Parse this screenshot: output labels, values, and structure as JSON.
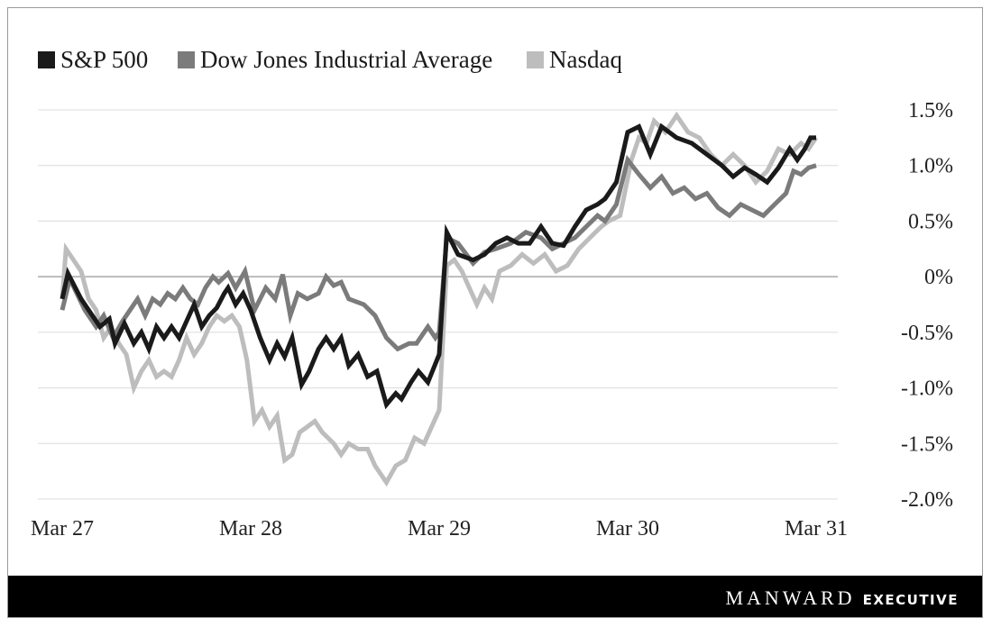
{
  "chart_data": {
    "type": "line",
    "title": "",
    "xlabel": "",
    "ylabel": "",
    "x_tick_labels": [
      "Mar 27",
      "Mar 28",
      "Mar 29",
      "Mar 30",
      "Mar 31"
    ],
    "y_ticks": [
      {
        "value": 1.5,
        "label": "1.5%"
      },
      {
        "value": 1.0,
        "label": "1.0%"
      },
      {
        "value": 0.5,
        "label": "0.5%"
      },
      {
        "value": 0.0,
        "label": "0%"
      },
      {
        "value": -0.5,
        "label": "-0.5%"
      },
      {
        "value": -1.0,
        "label": "-1.0%"
      },
      {
        "value": -1.5,
        "label": "-1.5%"
      },
      {
        "value": -2.0,
        "label": "-2.0%"
      }
    ],
    "ylim": [
      -2.0,
      1.5
    ],
    "xlim": [
      0,
      4
    ],
    "legend_position": "top-left",
    "series": [
      {
        "name": "S&P 500",
        "color": "#1a1a1a",
        "points": [
          [
            0,
            -0.2
          ],
          [
            0.03,
            0.03
          ],
          [
            0.1,
            -0.2
          ],
          [
            0.2,
            -0.45
          ],
          [
            0.25,
            -0.38
          ],
          [
            0.28,
            -0.6
          ],
          [
            0.33,
            -0.42
          ],
          [
            0.38,
            -0.6
          ],
          [
            0.42,
            -0.5
          ],
          [
            0.46,
            -0.65
          ],
          [
            0.5,
            -0.45
          ],
          [
            0.54,
            -0.55
          ],
          [
            0.58,
            -0.45
          ],
          [
            0.62,
            -0.55
          ],
          [
            0.66,
            -0.4
          ],
          [
            0.7,
            -0.25
          ],
          [
            0.74,
            -0.45
          ],
          [
            0.78,
            -0.35
          ],
          [
            0.82,
            -0.28
          ],
          [
            0.86,
            -0.15
          ],
          [
            0.88,
            -0.1
          ],
          [
            0.92,
            -0.25
          ],
          [
            0.96,
            -0.15
          ],
          [
            1.0,
            -0.3
          ],
          [
            1.05,
            -0.55
          ],
          [
            1.1,
            -0.75
          ],
          [
            1.14,
            -0.6
          ],
          [
            1.18,
            -0.72
          ],
          [
            1.22,
            -0.55
          ],
          [
            1.27,
            -0.97
          ],
          [
            1.31,
            -0.85
          ],
          [
            1.36,
            -0.65
          ],
          [
            1.4,
            -0.55
          ],
          [
            1.44,
            -0.65
          ],
          [
            1.48,
            -0.55
          ],
          [
            1.52,
            -0.8
          ],
          [
            1.57,
            -0.7
          ],
          [
            1.62,
            -0.9
          ],
          [
            1.67,
            -0.85
          ],
          [
            1.72,
            -1.15
          ],
          [
            1.77,
            -1.05
          ],
          [
            1.8,
            -1.1
          ],
          [
            1.85,
            -0.95
          ],
          [
            1.89,
            -0.85
          ],
          [
            1.94,
            -0.95
          ],
          [
            2.0,
            -0.7
          ],
          [
            2.04,
            0.4
          ],
          [
            2.1,
            0.2
          ],
          [
            2.18,
            0.15
          ],
          [
            2.24,
            0.2
          ],
          [
            2.3,
            0.3
          ],
          [
            2.36,
            0.35
          ],
          [
            2.42,
            0.3
          ],
          [
            2.48,
            0.3
          ],
          [
            2.54,
            0.45
          ],
          [
            2.6,
            0.3
          ],
          [
            2.66,
            0.28
          ],
          [
            2.72,
            0.45
          ],
          [
            2.78,
            0.6
          ],
          [
            2.84,
            0.65
          ],
          [
            2.88,
            0.7
          ],
          [
            2.94,
            0.85
          ],
          [
            3.0,
            1.3
          ],
          [
            3.06,
            1.35
          ],
          [
            3.12,
            1.1
          ],
          [
            3.18,
            1.35
          ],
          [
            3.26,
            1.25
          ],
          [
            3.34,
            1.2
          ],
          [
            3.42,
            1.1
          ],
          [
            3.5,
            1.0
          ],
          [
            3.56,
            0.9
          ],
          [
            3.62,
            0.98
          ],
          [
            3.68,
            0.92
          ],
          [
            3.74,
            0.85
          ],
          [
            3.8,
            0.98
          ],
          [
            3.86,
            1.15
          ],
          [
            3.9,
            1.05
          ],
          [
            3.94,
            1.15
          ],
          [
            3.97,
            1.25
          ],
          [
            4.0,
            1.25
          ]
        ]
      },
      {
        "name": "Dow Jones Industrial Average",
        "color": "#7b7b7c",
        "points": [
          [
            0,
            -0.3
          ],
          [
            0.04,
            -0.02
          ],
          [
            0.12,
            -0.3
          ],
          [
            0.18,
            -0.45
          ],
          [
            0.22,
            -0.35
          ],
          [
            0.27,
            -0.55
          ],
          [
            0.32,
            -0.4
          ],
          [
            0.36,
            -0.3
          ],
          [
            0.4,
            -0.2
          ],
          [
            0.44,
            -0.35
          ],
          [
            0.48,
            -0.2
          ],
          [
            0.52,
            -0.25
          ],
          [
            0.56,
            -0.15
          ],
          [
            0.6,
            -0.2
          ],
          [
            0.64,
            -0.1
          ],
          [
            0.68,
            -0.2
          ],
          [
            0.72,
            -0.25
          ],
          [
            0.76,
            -0.1
          ],
          [
            0.8,
            0.0
          ],
          [
            0.83,
            -0.05
          ],
          [
            0.88,
            0.03
          ],
          [
            0.92,
            -0.1
          ],
          [
            0.97,
            0.05
          ],
          [
            1.02,
            -0.3
          ],
          [
            1.08,
            -0.1
          ],
          [
            1.13,
            -0.2
          ],
          [
            1.17,
            0.02
          ],
          [
            1.21,
            -0.35
          ],
          [
            1.25,
            -0.15
          ],
          [
            1.3,
            -0.2
          ],
          [
            1.36,
            -0.15
          ],
          [
            1.4,
            0.0
          ],
          [
            1.44,
            -0.08
          ],
          [
            1.48,
            -0.05
          ],
          [
            1.52,
            -0.2
          ],
          [
            1.6,
            -0.25
          ],
          [
            1.66,
            -0.35
          ],
          [
            1.72,
            -0.55
          ],
          [
            1.78,
            -0.65
          ],
          [
            1.84,
            -0.6
          ],
          [
            1.88,
            -0.6
          ],
          [
            1.94,
            -0.45
          ],
          [
            1.98,
            -0.55
          ],
          [
            2.0,
            -0.5
          ],
          [
            2.04,
            0.35
          ],
          [
            2.1,
            0.3
          ],
          [
            2.18,
            0.12
          ],
          [
            2.24,
            0.22
          ],
          [
            2.3,
            0.25
          ],
          [
            2.38,
            0.3
          ],
          [
            2.46,
            0.4
          ],
          [
            2.54,
            0.35
          ],
          [
            2.6,
            0.25
          ],
          [
            2.66,
            0.3
          ],
          [
            2.72,
            0.35
          ],
          [
            2.78,
            0.45
          ],
          [
            2.84,
            0.55
          ],
          [
            2.88,
            0.5
          ],
          [
            2.94,
            0.65
          ],
          [
            3.0,
            1.05
          ],
          [
            3.06,
            0.92
          ],
          [
            3.12,
            0.8
          ],
          [
            3.18,
            0.9
          ],
          [
            3.24,
            0.75
          ],
          [
            3.3,
            0.8
          ],
          [
            3.36,
            0.7
          ],
          [
            3.42,
            0.75
          ],
          [
            3.48,
            0.62
          ],
          [
            3.54,
            0.55
          ],
          [
            3.6,
            0.65
          ],
          [
            3.66,
            0.6
          ],
          [
            3.72,
            0.55
          ],
          [
            3.78,
            0.65
          ],
          [
            3.84,
            0.75
          ],
          [
            3.88,
            0.95
          ],
          [
            3.92,
            0.92
          ],
          [
            3.96,
            0.98
          ],
          [
            4.0,
            1.0
          ]
        ]
      },
      {
        "name": "Nasdaq",
        "color": "#bdbdbd",
        "points": [
          [
            0,
            -0.2
          ],
          [
            0.02,
            0.25
          ],
          [
            0.06,
            0.15
          ],
          [
            0.1,
            0.05
          ],
          [
            0.14,
            -0.2
          ],
          [
            0.18,
            -0.3
          ],
          [
            0.22,
            -0.55
          ],
          [
            0.26,
            -0.45
          ],
          [
            0.3,
            -0.6
          ],
          [
            0.34,
            -0.7
          ],
          [
            0.38,
            -1.0
          ],
          [
            0.42,
            -0.85
          ],
          [
            0.46,
            -0.75
          ],
          [
            0.5,
            -0.9
          ],
          [
            0.54,
            -0.85
          ],
          [
            0.58,
            -0.9
          ],
          [
            0.62,
            -0.75
          ],
          [
            0.66,
            -0.55
          ],
          [
            0.7,
            -0.7
          ],
          [
            0.74,
            -0.6
          ],
          [
            0.78,
            -0.45
          ],
          [
            0.82,
            -0.35
          ],
          [
            0.86,
            -0.4
          ],
          [
            0.9,
            -0.35
          ],
          [
            0.94,
            -0.45
          ],
          [
            0.98,
            -0.75
          ],
          [
            1.02,
            -1.3
          ],
          [
            1.06,
            -1.2
          ],
          [
            1.1,
            -1.35
          ],
          [
            1.14,
            -1.25
          ],
          [
            1.18,
            -1.65
          ],
          [
            1.22,
            -1.6
          ],
          [
            1.26,
            -1.4
          ],
          [
            1.3,
            -1.35
          ],
          [
            1.34,
            -1.3
          ],
          [
            1.38,
            -1.4
          ],
          [
            1.44,
            -1.5
          ],
          [
            1.48,
            -1.6
          ],
          [
            1.52,
            -1.5
          ],
          [
            1.57,
            -1.55
          ],
          [
            1.62,
            -1.55
          ],
          [
            1.66,
            -1.7
          ],
          [
            1.72,
            -1.85
          ],
          [
            1.77,
            -1.7
          ],
          [
            1.82,
            -1.65
          ],
          [
            1.87,
            -1.45
          ],
          [
            1.92,
            -1.5
          ],
          [
            1.96,
            -1.35
          ],
          [
            2.0,
            -1.2
          ],
          [
            2.04,
            0.1
          ],
          [
            2.08,
            0.15
          ],
          [
            2.12,
            0.05
          ],
          [
            2.16,
            -0.1
          ],
          [
            2.2,
            -0.25
          ],
          [
            2.24,
            -0.1
          ],
          [
            2.28,
            -0.2
          ],
          [
            2.32,
            0.05
          ],
          [
            2.38,
            0.1
          ],
          [
            2.44,
            0.2
          ],
          [
            2.5,
            0.12
          ],
          [
            2.56,
            0.2
          ],
          [
            2.62,
            0.05
          ],
          [
            2.68,
            0.1
          ],
          [
            2.74,
            0.25
          ],
          [
            2.8,
            0.35
          ],
          [
            2.86,
            0.45
          ],
          [
            2.9,
            0.5
          ],
          [
            2.96,
            0.55
          ],
          [
            3.02,
            1.05
          ],
          [
            3.06,
            1.25
          ],
          [
            3.1,
            1.2
          ],
          [
            3.14,
            1.4
          ],
          [
            3.2,
            1.3
          ],
          [
            3.26,
            1.45
          ],
          [
            3.32,
            1.3
          ],
          [
            3.38,
            1.25
          ],
          [
            3.44,
            1.1
          ],
          [
            3.5,
            1.0
          ],
          [
            3.56,
            1.1
          ],
          [
            3.62,
            1.0
          ],
          [
            3.68,
            0.85
          ],
          [
            3.74,
            0.95
          ],
          [
            3.8,
            1.15
          ],
          [
            3.86,
            1.1
          ],
          [
            3.92,
            1.2
          ],
          [
            3.96,
            1.15
          ],
          [
            4.0,
            1.25
          ]
        ]
      }
    ]
  },
  "brand": {
    "name": "MANWARD",
    "tagline": "EXECUTIVE"
  }
}
